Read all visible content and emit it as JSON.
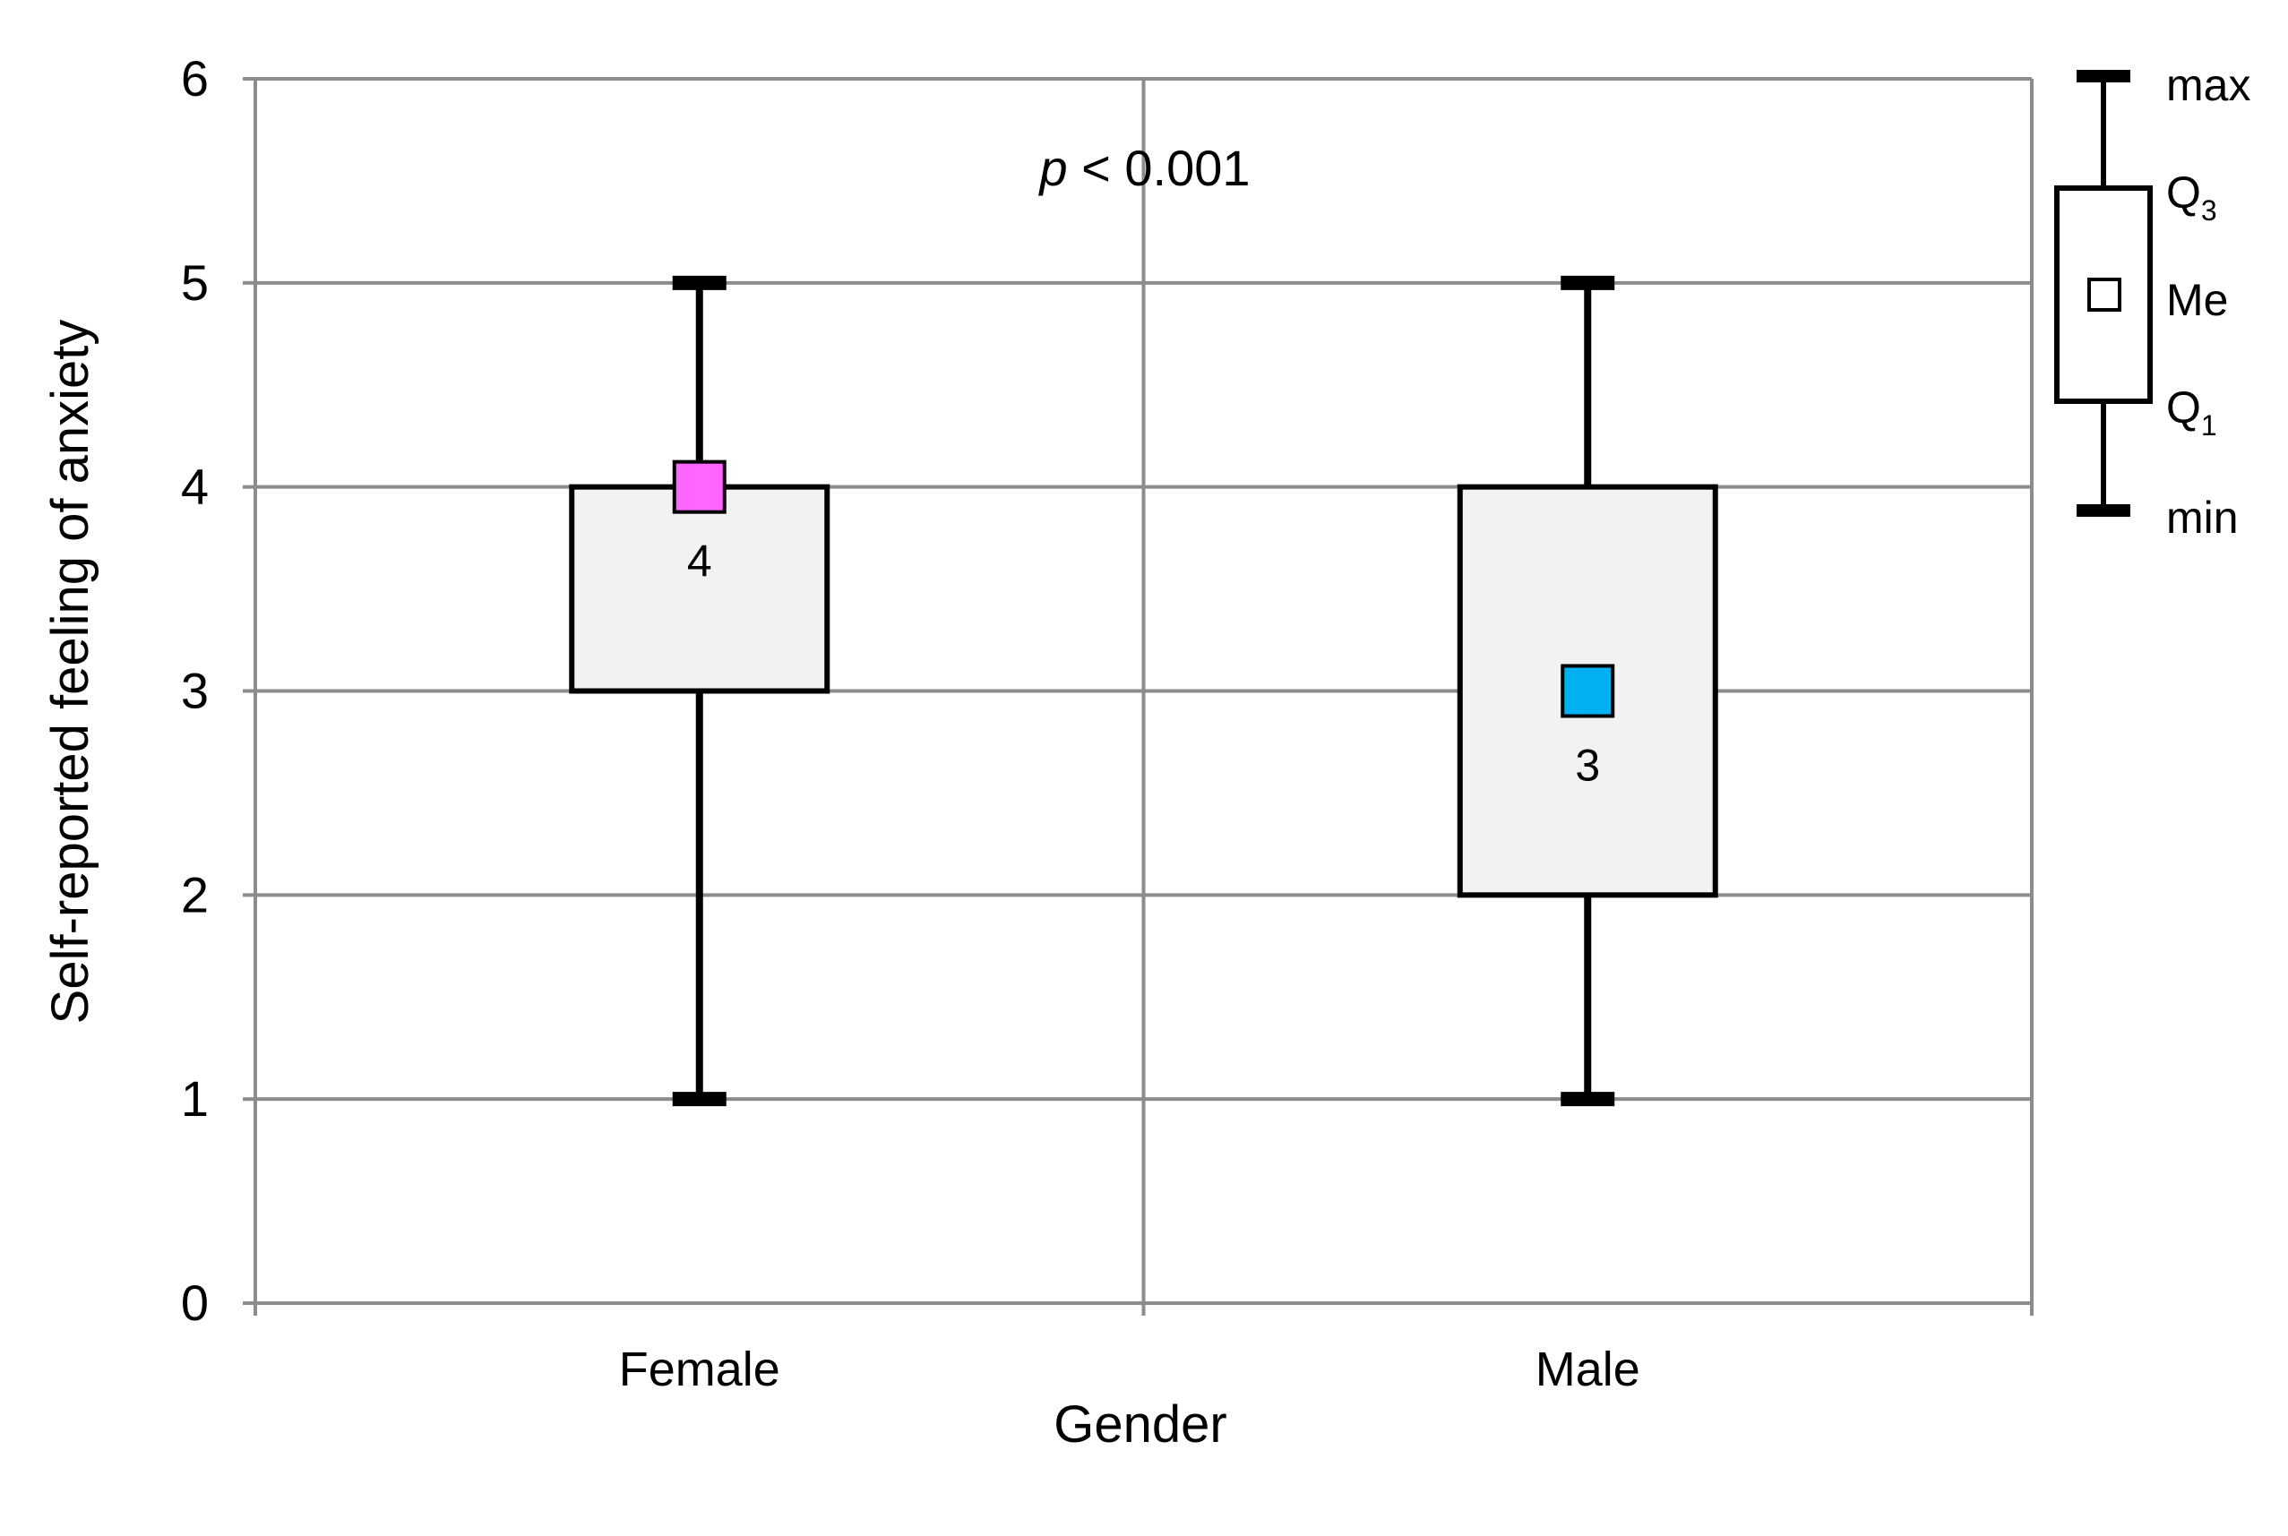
{
  "chart_data": {
    "type": "box",
    "xlabel": "Gender",
    "ylabel": "Self-reported feeling of anxiety",
    "ylim": [
      0,
      6
    ],
    "yticks": [
      "0",
      "1",
      "2",
      "3",
      "4",
      "5",
      "6"
    ],
    "grid": true,
    "categories": [
      "Female",
      "Male"
    ],
    "boxes": [
      {
        "category": "Female",
        "min": 1,
        "q1": 3,
        "median": 4,
        "q3": 4,
        "max": 5,
        "median_label": "4",
        "marker_color": "#ff66ff"
      },
      {
        "category": "Male",
        "min": 1,
        "q1": 2,
        "median": 3,
        "q3": 4,
        "max": 5,
        "median_label": "3",
        "marker_color": "#00b0f0"
      }
    ],
    "annotation": {
      "italic": "p",
      "rest": " < 0.001"
    },
    "legend": {
      "position": "right",
      "max": "max",
      "q3": "Q",
      "q3_sub": "3",
      "me": "Me",
      "q1": "Q",
      "q1_sub": "1",
      "min": "min"
    },
    "colors": {
      "box_fill": "#f2f2f2",
      "grid": "#8c8c8c",
      "stroke": "#000000"
    }
  }
}
